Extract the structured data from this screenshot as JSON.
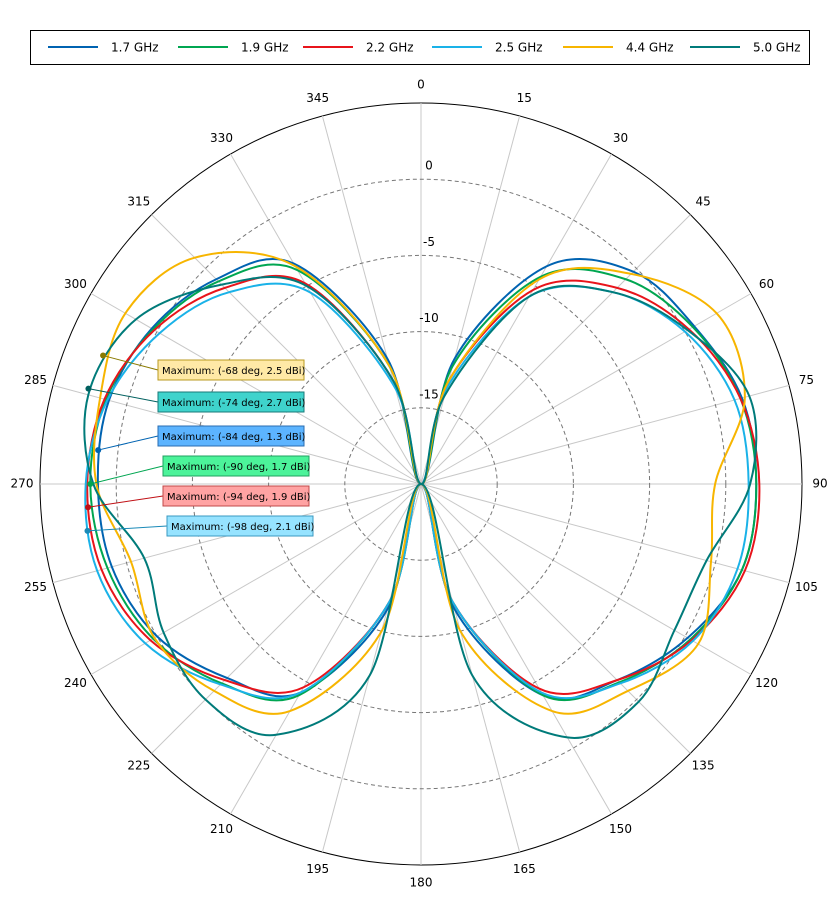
{
  "chart_data": {
    "type": "polar",
    "theta": [
      0,
      15,
      30,
      45,
      60,
      75,
      90,
      105,
      120,
      135,
      150,
      165,
      180,
      195,
      210,
      225,
      240,
      255,
      270,
      285,
      300,
      315,
      330,
      345
    ],
    "thetaticks": [
      0,
      15,
      30,
      45,
      60,
      75,
      90,
      105,
      120,
      135,
      150,
      165,
      180,
      195,
      210,
      225,
      240,
      255,
      270,
      285,
      300,
      315,
      330,
      345
    ],
    "rlim": [
      -20,
      5
    ],
    "rticks": [
      -15,
      -10,
      -5,
      0
    ],
    "grid": true,
    "legend": "top",
    "series": [
      {
        "name": "1.7 GHz",
        "color": "#0063b1",
        "values": [
          -20,
          -11.5,
          -3.5,
          -0.3,
          0.7,
          1.8,
          2.0,
          1.8,
          0.2,
          -1.8,
          -4.0,
          -11.5,
          -20,
          -11.5,
          -4.2,
          -2.0,
          0,
          1.0,
          1.2,
          1.2,
          0.4,
          -1.0,
          -3.3,
          -11.5
        ]
      },
      {
        "name": "1.9 GHz",
        "color": "#00a651",
        "values": [
          -20,
          -12,
          -4.3,
          -1.0,
          0.6,
          1.7,
          2.0,
          1.8,
          0.4,
          -1.6,
          -4.0,
          -12,
          -20,
          -12,
          -4.0,
          -1.5,
          0.3,
          1.3,
          1.7,
          1.4,
          0.3,
          -1.2,
          -3.8,
          -12
        ]
      },
      {
        "name": "2.2 GHz",
        "color": "#e8141b",
        "values": [
          -20,
          -13,
          -5.3,
          -1.8,
          0.3,
          1.7,
          2.2,
          2.0,
          0.5,
          -1.8,
          -4.5,
          -12,
          -20,
          -12,
          -4.6,
          -1.8,
          0.5,
          1.7,
          1.9,
          1.5,
          0.2,
          -1.8,
          -4.8,
          -13
        ]
      },
      {
        "name": "2.5 GHz",
        "color": "#1ab2e8",
        "values": [
          -20,
          -13.5,
          -5.8,
          -2.2,
          0,
          1.3,
          1.5,
          1.5,
          0.6,
          -1.5,
          -4.2,
          -12,
          -20,
          -12,
          -4.2,
          -1.4,
          0.9,
          2.0,
          2.0,
          1.3,
          -0.2,
          -2.2,
          -5.5,
          -13.5
        ]
      },
      {
        "name": "4.4 GHz",
        "color": "#f7b500",
        "values": [
          -20,
          -13,
          -4.5,
          -0.5,
          2.4,
          2.0,
          -0.7,
          -0.3,
          1.0,
          -0.8,
          -2.8,
          -10,
          -20,
          -10,
          -2.8,
          -0.8,
          0.2,
          -0.3,
          1.3,
          1.8,
          2.4,
          1.0,
          -3.5,
          -12
        ]
      },
      {
        "name": "5.0 GHz",
        "color": "#007b7a",
        "values": [
          -20,
          -14,
          -5.8,
          -2.2,
          0.2,
          2.3,
          1.6,
          -0.6,
          -0.8,
          0.2,
          -0.8,
          -7,
          -20,
          -7,
          -1.0,
          0.0,
          -0.5,
          -1.2,
          1.5,
          2.6,
          1.6,
          -1.5,
          -5,
          -13
        ]
      }
    ],
    "annotations": [
      {
        "text": "Maximum: (-68 deg, 2.5 dBi)",
        "theta": -68,
        "r": 2.5,
        "color": "#8a7a00",
        "bg": "#ffe9a6",
        "border": "#b89a20"
      },
      {
        "text": "Maximum: (-74 deg, 2.7 dBi)",
        "theta": -74,
        "r": 2.7,
        "color": "#00605f",
        "bg": "#3fd3cc",
        "border": "#1a7a78"
      },
      {
        "text": "Maximum: (-84 deg, 1.3 dBi)",
        "theta": -84,
        "r": 1.3,
        "color": "#0063b1",
        "bg": "#5cb4ff",
        "border": "#2a6cb0"
      },
      {
        "text": "Maximum: (-90 deg, 1.7 dBi)",
        "theta": -90,
        "r": 1.7,
        "color": "#00a651",
        "bg": "#4cf39a",
        "border": "#20a060"
      },
      {
        "text": "Maximum: (-94 deg, 1.9 dBi)",
        "theta": -94,
        "r": 1.9,
        "color": "#c01015",
        "bg": "#ffa3a3",
        "border": "#c04848"
      },
      {
        "text": "Maximum: (-98 deg, 2.1 dBi)",
        "theta": -98,
        "r": 2.1,
        "color": "#1a8ab8",
        "bg": "#96e3ff",
        "border": "#3a9ac0"
      }
    ]
  }
}
